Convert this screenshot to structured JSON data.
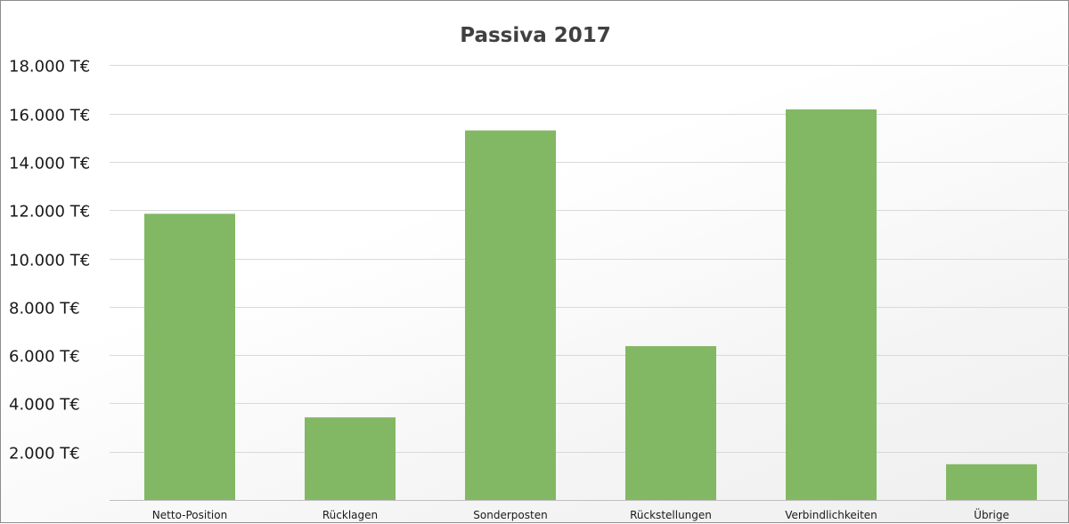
{
  "chart_data": {
    "type": "bar",
    "title": "Passiva 2017",
    "xlabel": "",
    "ylabel": "",
    "categories": [
      "Netto-Position",
      "Rücklagen",
      "Sonderposten",
      "Rückstellungen",
      "Verbindlichkeiten",
      "Übrige"
    ],
    "values": [
      11850,
      3420,
      15300,
      6370,
      16170,
      1480
    ],
    "ylim": [
      0,
      19000
    ],
    "y_ticks": [
      2000,
      4000,
      6000,
      8000,
      10000,
      12000,
      14000,
      16000,
      18000
    ],
    "y_tick_labels": [
      "2.000 T€",
      "4.000 T€",
      "6.000 T€",
      "8.000 T€",
      "10.000 T€",
      "12.000 T€",
      "14.000 T€",
      "16.000 T€",
      "18.000 T€"
    ],
    "grid": true,
    "legend": "none",
    "colors": {
      "bar": "#82b864"
    }
  }
}
